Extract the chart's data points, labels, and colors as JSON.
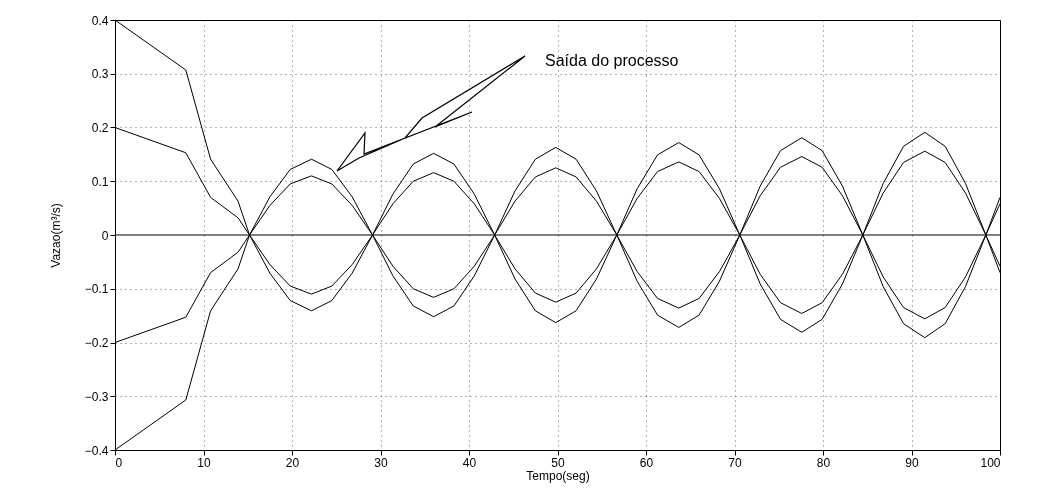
{
  "chart_data": {
    "type": "line",
    "xlabel": "Tempo(seg)",
    "ylabel": "Vazao(m³/s)",
    "x": [
      0,
      8,
      10.8,
      13.9,
      15.2,
      17.5,
      19.8,
      22.2,
      24.5,
      26.8,
      29.1,
      31.4,
      33.7,
      36.0,
      38.3,
      40.6,
      42.9,
      45.2,
      47.5,
      49.8,
      52.1,
      54.4,
      56.7,
      59.0,
      61.3,
      63.7,
      66.0,
      68.3,
      70.6,
      72.9,
      75.2,
      77.6,
      79.9,
      82.2,
      84.5,
      86.8,
      89.1,
      91.5,
      93.8,
      96.1,
      98.4,
      100
    ],
    "series": [
      {
        "color": "#000000",
        "values": [
          0.4,
          0.307,
          0.141,
          0.063,
          0,
          -0.071,
          -0.122,
          -0.141,
          -0.122,
          -0.071,
          0,
          0.076,
          0.132,
          0.152,
          0.132,
          0.076,
          0,
          -0.082,
          -0.141,
          -0.163,
          -0.141,
          -0.082,
          0,
          0.086,
          0.149,
          0.172,
          0.149,
          0.086,
          0,
          -0.091,
          -0.157,
          -0.181,
          -0.157,
          -0.091,
          0,
          0.096,
          0.165,
          0.191,
          0.165,
          0.096,
          0,
          -0.07
        ]
      },
      {
        "color": "#000000",
        "values": [
          0.2,
          0.153,
          0.07,
          0.032,
          0,
          -0.055,
          -0.095,
          -0.11,
          -0.095,
          -0.055,
          0,
          0.058,
          0.1,
          0.116,
          0.1,
          0.058,
          0,
          -0.063,
          -0.108,
          -0.125,
          -0.108,
          -0.063,
          0,
          0.068,
          0.118,
          0.136,
          0.118,
          0.068,
          0,
          -0.073,
          -0.126,
          -0.146,
          -0.126,
          -0.073,
          0,
          0.078,
          0.135,
          0.156,
          0.135,
          0.078,
          0,
          -0.058
        ]
      },
      {
        "color": "#000000",
        "values": [
          -0.2,
          -0.153,
          -0.07,
          -0.032,
          0,
          0.055,
          0.095,
          0.11,
          0.095,
          0.055,
          0,
          -0.058,
          -0.1,
          -0.116,
          -0.1,
          -0.058,
          0,
          0.063,
          0.108,
          0.125,
          0.108,
          0.063,
          0,
          -0.068,
          -0.118,
          -0.136,
          -0.118,
          -0.068,
          0,
          0.073,
          0.126,
          0.146,
          0.126,
          0.073,
          0,
          -0.078,
          -0.135,
          -0.156,
          -0.135,
          -0.078,
          0,
          0.058
        ]
      },
      {
        "color": "#000000",
        "x": [
          0,
          100
        ],
        "values": [
          0,
          0
        ]
      },
      {
        "color": "#000000",
        "values": [
          -0.4,
          -0.307,
          -0.141,
          -0.063,
          0,
          0.071,
          0.122,
          0.141,
          0.122,
          0.071,
          0,
          -0.076,
          -0.132,
          -0.152,
          -0.132,
          -0.076,
          0,
          0.082,
          0.141,
          0.163,
          0.141,
          0.082,
          0,
          -0.086,
          -0.149,
          -0.172,
          -0.149,
          -0.086,
          0,
          0.091,
          0.157,
          0.181,
          0.157,
          0.091,
          0,
          -0.096,
          -0.165,
          -0.191,
          -0.165,
          -0.096,
          0,
          0.07
        ]
      }
    ],
    "xlim": [
      0,
      100
    ],
    "xticks": [
      0,
      10,
      20,
      30,
      40,
      50,
      60,
      70,
      80,
      90,
      100
    ],
    "ylim": [
      -0.4,
      0.4
    ],
    "yticks": [
      -0.4,
      -0.3,
      -0.2,
      -0.1,
      0,
      0.1,
      0.2,
      0.3,
      0.4
    ],
    "annotations": [
      "Saída do processo"
    ],
    "grid": true,
    "line_style": "solid"
  }
}
